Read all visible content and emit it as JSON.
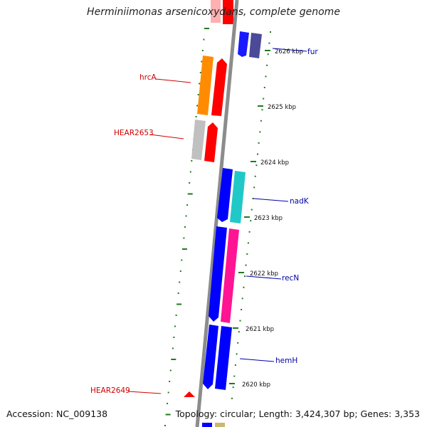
{
  "title": "Herminiimonas arsenicoxydans, complete genome",
  "footer": {
    "accession": "Accession: NC_009138",
    "topology": "Topology: circular; Length: 3,424,307 bp; Genes: 3,353"
  },
  "colors": {
    "backbone": "#8c8c8c",
    "tick": "#1f7a1f",
    "label_red": "#d00000",
    "label_blue": "#0000aa"
  },
  "scale_labels": [
    "2626 kbp",
    "2625 kbp",
    "2624 kbp",
    "2623 kbp",
    "2622 kbp",
    "2621 kbp",
    "2620 kbp"
  ],
  "genes": [
    {
      "id": "fur",
      "label": "fur",
      "label_color": "#0000aa",
      "fill": "#1a1aff",
      "fill2": "#4a4a99"
    },
    {
      "id": "hrcA",
      "label": "hrcA",
      "label_color": "#d00000",
      "fill": "#ff8c00",
      "fill2": "#ff0000"
    },
    {
      "id": "HEAR2653",
      "label": "HEAR2653",
      "label_color": "#d00000",
      "fill": "#c0c0c0",
      "fill2": "#ff0000"
    },
    {
      "id": "nadK",
      "label": "nadK",
      "label_color": "#0000aa",
      "fill": "#0000ff",
      "fill2": "#20c8c8"
    },
    {
      "id": "recN",
      "label": "recN",
      "label_color": "#0000aa",
      "fill": "#0000ff",
      "fill2": "#ff1493"
    },
    {
      "id": "hemH",
      "label": "hemH",
      "label_color": "#0000aa",
      "fill": "#0000ff",
      "fill2": "#0000ff"
    },
    {
      "id": "HEAR2649",
      "label": "HEAR2649",
      "label_color": "#d00000",
      "fill": "#ff0000",
      "fill2": "#ff0000"
    }
  ]
}
